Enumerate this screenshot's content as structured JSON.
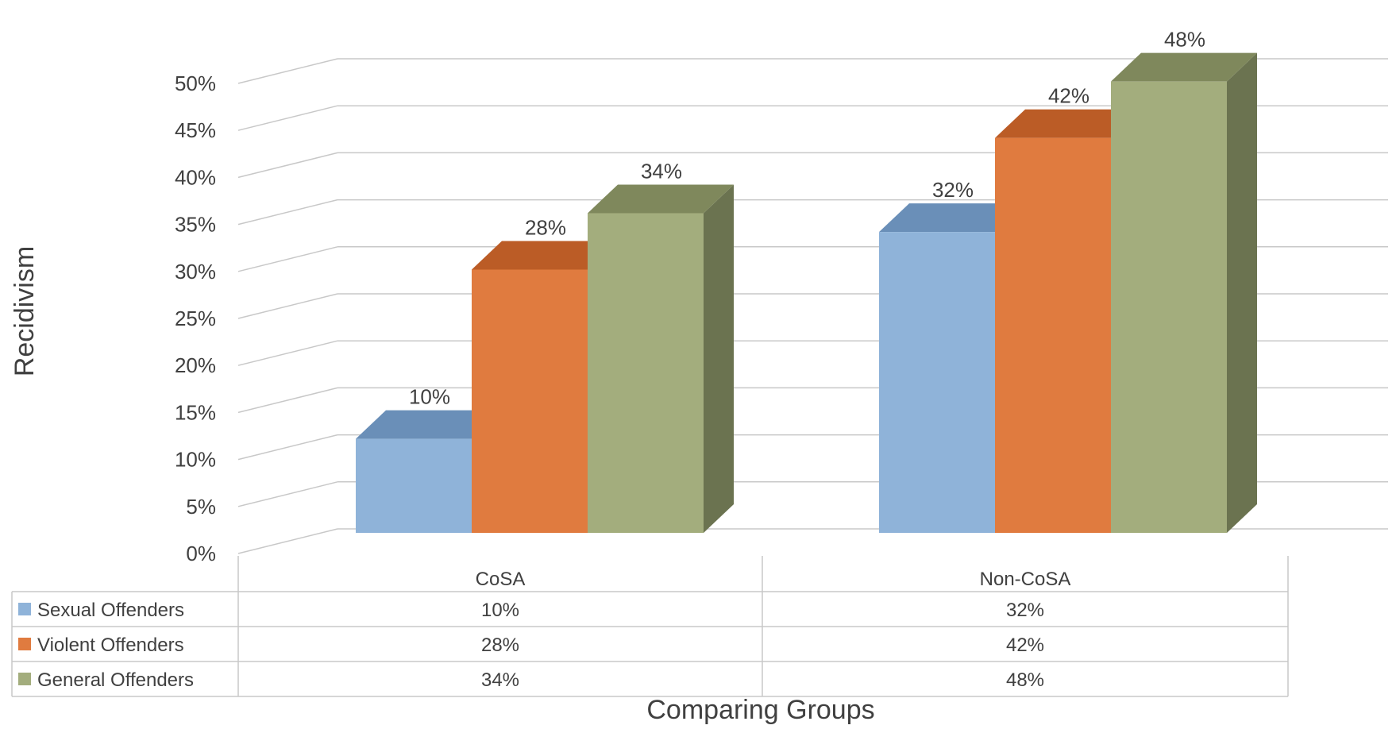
{
  "chart_data": {
    "type": "bar",
    "ylabel": "Recidivism",
    "xlabel": "Comparing Groups",
    "categories": [
      "CoSA",
      "Non-CoSA"
    ],
    "series": [
      {
        "name": "Sexual Offenders",
        "values": [
          10,
          32
        ],
        "labels": [
          "10%",
          "32%"
        ]
      },
      {
        "name": "Violent Offenders",
        "values": [
          28,
          42
        ],
        "labels": [
          "28%",
          "42%"
        ]
      },
      {
        "name": "General Offenders",
        "values": [
          34,
          48
        ],
        "labels": [
          "34%",
          "48%"
        ]
      }
    ],
    "ylim": [
      0,
      50
    ],
    "yticks": [
      0,
      5,
      10,
      15,
      20,
      25,
      30,
      35,
      40,
      45,
      50
    ],
    "ytick_labels": [
      "0%",
      "5%",
      "10%",
      "15%",
      "20%",
      "25%",
      "30%",
      "35%",
      "40%",
      "45%",
      "50%"
    ],
    "grid": true,
    "legend": "data-table",
    "colors": {
      "Sexual Offenders": {
        "front": "#8fb3d9",
        "top": "#6a8fb8",
        "side": "#5d7ea3"
      },
      "Violent Offenders": {
        "front": "#e07b3f",
        "top": "#bb5c26",
        "side": "#a44f1e"
      },
      "General Offenders": {
        "front": "#a3ad7d",
        "top": "#7f885c",
        "side": "#6b7350"
      }
    }
  }
}
